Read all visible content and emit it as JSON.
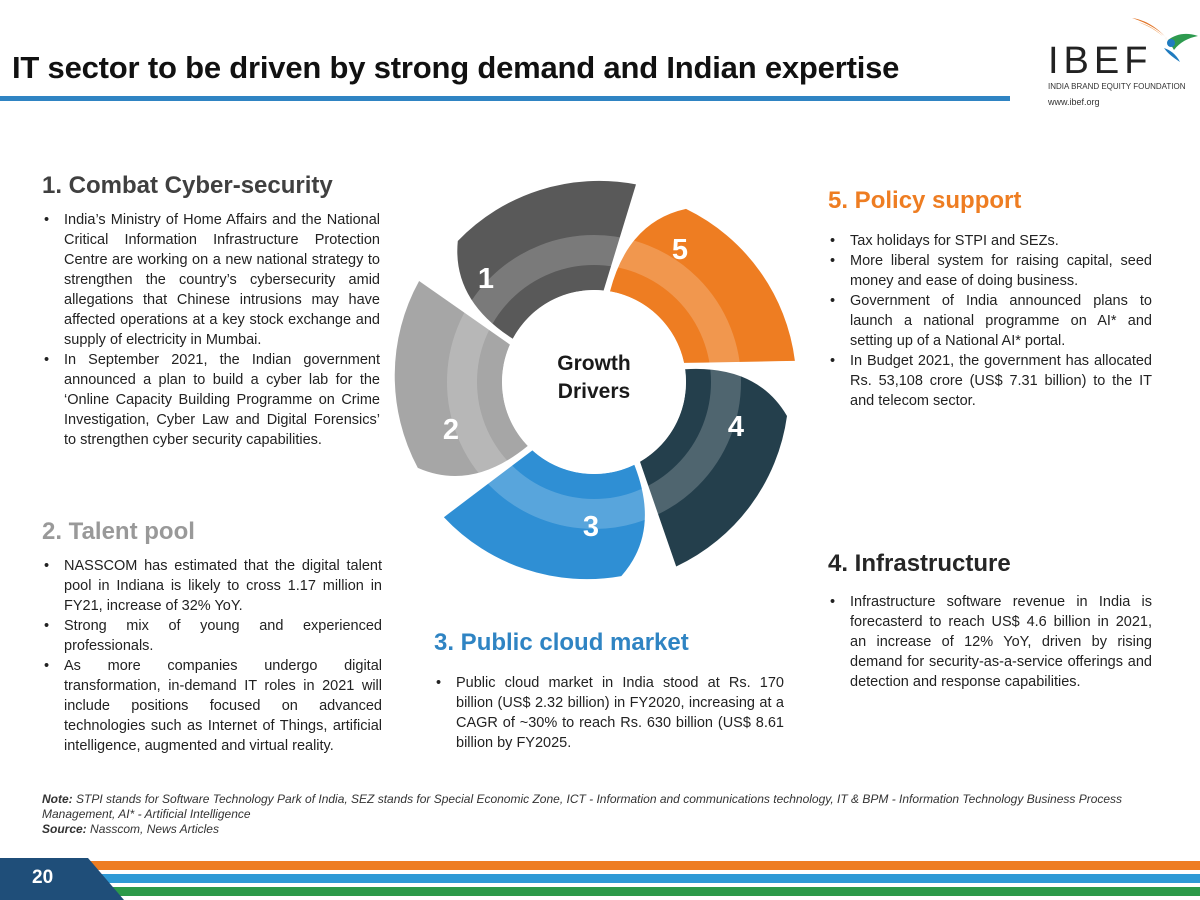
{
  "title": "IT sector to be driven by strong demand and Indian expertise",
  "logo": {
    "name": "IBEF",
    "subtitle": "INDIA BRAND EQUITY FOUNDATION",
    "url": "www.ibef.org"
  },
  "center_label": {
    "line1": "Growth",
    "line2": "Drivers"
  },
  "wheel_numbers": [
    "1",
    "2",
    "3",
    "4",
    "5"
  ],
  "colors": {
    "segment1": "#595959",
    "segment2": "#a6a6a6",
    "segment3": "#2f8fd4",
    "segment4": "#243f4c",
    "segment5": "#ee7d22",
    "title_rule": "#2f84c3"
  },
  "sections": {
    "s1": {
      "heading": "1. Combat Cyber-security",
      "bullets": [
        "India’s Ministry of Home Affairs and the National Critical Information Infrastructure Protection Centre are working on a new national strategy to strengthen the country’s cybersecurity amid allegations that Chinese intrusions may have affected operations at a key stock exchange and supply of electricity in Mumbai.",
        "In September 2021, the Indian government announced a plan to build a cyber lab for the ‘Online Capacity Building Programme on Crime Investigation, Cyber Law and Digital Forensics’ to strengthen cyber security capabilities."
      ]
    },
    "s2": {
      "heading": "2. Talent pool",
      "bullets": [
        "NASSCOM has estimated that the digital talent pool in Indiana is likely to cross 1.17 million in FY21, increase of 32% YoY.",
        "Strong mix of young and experienced professionals.",
        "As more companies undergo digital transformation, in-demand IT roles in 2021 will include positions focused on advanced technologies such as Internet of Things, artificial intelligence, augmented and virtual reality."
      ]
    },
    "s3": {
      "heading": "3. Public cloud market",
      "bullets": [
        "Public cloud market in India stood at Rs. 170 billion (US$ 2.32 billion) in FY2020, increasing at a CAGR of ~30% to reach Rs. 630 billion (US$ 8.61 billion by FY2025."
      ]
    },
    "s4": {
      "heading": "4. Infrastructure",
      "bullets": [
        "Infrastructure software revenue in India is forecasterd to reach US$ 4.6 billion in 2021, an increase of 12% YoY, driven by rising demand for security-as-a-service offerings and detection and response capabilities."
      ]
    },
    "s5": {
      "heading": "5. Policy support",
      "bullets": [
        "Tax holidays for STPI and SEZs.",
        "More liberal system for raising capital, seed money and ease of doing business.",
        "Government of India announced plans to launch a national programme on AI* and setting up of a National AI* portal.",
        "In Budget 2021, the government has allocated Rs. 53,108 crore (US$ 7.31 billion) to the IT and telecom sector."
      ]
    }
  },
  "note": {
    "label": "Note:",
    "text": "STPI stands for Software Technology Park of India, SEZ stands for Special Economic Zone, ICT - Information and communications technology, IT & BPM - Information Technology Business Process Management, AI* - Artificial Intelligence",
    "source_label": "Source:",
    "source_text": "Nasscom, News Articles"
  },
  "page_number": "20"
}
